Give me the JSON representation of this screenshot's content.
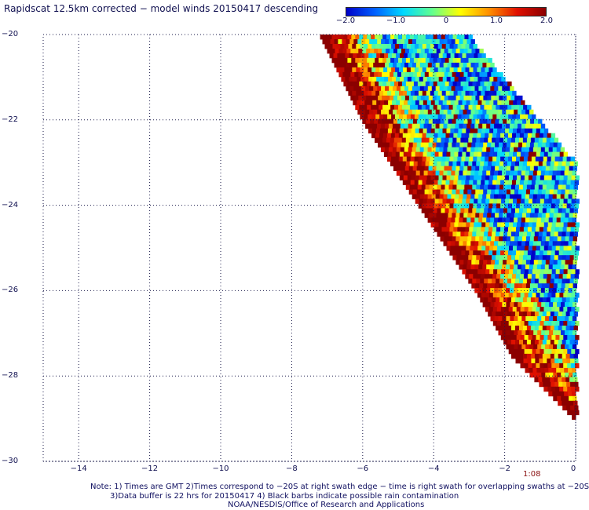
{
  "title": "Rapidscat 12.5km corrected − model winds 20150417 descending",
  "colorbar": {
    "ticks": [
      "−2.0",
      "−1.0",
      "0",
      "1.0",
      "2.0"
    ],
    "tick_values": [
      -2,
      -1,
      0,
      1,
      2
    ],
    "range": [
      -2.0,
      2.0
    ],
    "colors": [
      "#0000c8",
      "#0060ff",
      "#00d8ff",
      "#60ff90",
      "#ffff00",
      "#ff9000",
      "#e01000",
      "#8b0000"
    ]
  },
  "chart_data": {
    "type": "heatmap",
    "xlim": [
      -15,
      0
    ],
    "ylim": [
      -30,
      -20
    ],
    "x_ticks": [
      "−14",
      "−12",
      "−10",
      "−8",
      "−6",
      "−4",
      "−2",
      "0"
    ],
    "x_tick_values": [
      -14,
      -12,
      -10,
      -8,
      -6,
      -4,
      -2,
      0
    ],
    "y_ticks": [
      "−20",
      "−22",
      "−24",
      "−26",
      "−28",
      "−30"
    ],
    "y_tick_values": [
      -20,
      -22,
      -24,
      -26,
      -28,
      -30
    ],
    "grid": true,
    "swath_left_edge": [
      [
        -7.2,
        -20.0
      ],
      [
        -6.0,
        -22.0
      ],
      [
        -4.4,
        -24.0
      ],
      [
        -2.8,
        -26.0
      ],
      [
        -1.8,
        -27.5
      ],
      [
        0.0,
        -29.0
      ]
    ],
    "swath_right_edge": [
      [
        -3.0,
        -20.0
      ],
      [
        -1.0,
        -22.0
      ],
      [
        0.0,
        -23.0
      ],
      [
        0.0,
        -29.0
      ]
    ],
    "grid_resolution_deg": 0.11,
    "time_label": "1:08"
  },
  "notes": {
    "line1": "Note: 1) Times are GMT 2)Times correspond to −20S at right swath edge − time is right swath for overlapping swaths at −20S",
    "line2": "3)Data buffer is 22 hrs for 20150417 4) Black barbs indicate possible rain contamination",
    "line3": "NOAA/NESDIS/Office of Research and Applications"
  }
}
